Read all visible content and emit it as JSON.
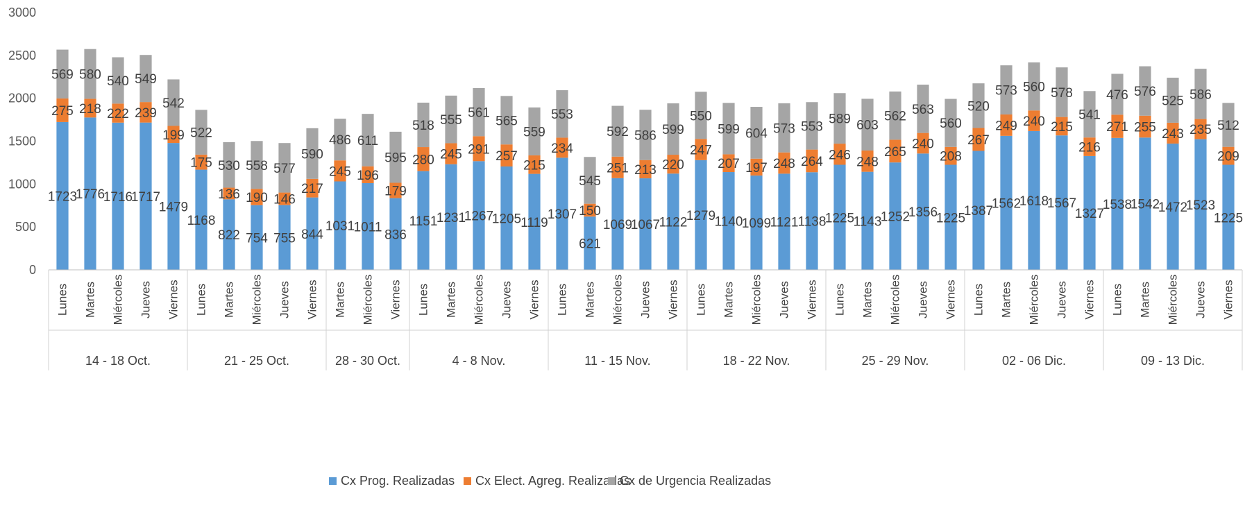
{
  "chart_data": {
    "type": "bar",
    "stacked": true,
    "title": "",
    "xlabel": "",
    "ylabel": "",
    "ylim": [
      0,
      3000
    ],
    "yticks": [
      0,
      500,
      1000,
      1500,
      2000,
      2500,
      3000
    ],
    "grid": false,
    "legend_position": "bottom",
    "groups": [
      {
        "label": "14 - 18 Oct.",
        "days": [
          "Lunes",
          "Martes",
          "Miércoles",
          "Jueves",
          "Viernes"
        ]
      },
      {
        "label": "21 - 25 Oct.",
        "days": [
          "Lunes",
          "Martes",
          "Miércoles",
          "Jueves",
          "Viernes"
        ]
      },
      {
        "label": "28 - 30 Oct.",
        "days": [
          "Martes",
          "Miércoles",
          "Viernes"
        ]
      },
      {
        "label": "4 - 8 Nov.",
        "days": [
          "Lunes",
          "Martes",
          "Miércoles",
          "Jueves",
          "Viernes"
        ]
      },
      {
        "label": "11 - 15 Nov.",
        "days": [
          "Lunes",
          "Martes",
          "Miércoles",
          "Jueves",
          "Viernes"
        ]
      },
      {
        "label": "18 - 22 Nov.",
        "days": [
          "Lunes",
          "Martes",
          "Miércoles",
          "Jueves",
          "Viernes"
        ]
      },
      {
        "label": "25 - 29 Nov.",
        "days": [
          "Lunes",
          "Martes",
          "Miércoles",
          "Jueves",
          "Viernes"
        ]
      },
      {
        "label": "02 - 06 Dic.",
        "days": [
          "Lunes",
          "Martes",
          "Miércoles",
          "Jueves",
          "Viernes"
        ]
      },
      {
        "label": "09 - 13 Dic.",
        "days": [
          "Lunes",
          "Martes",
          "Miércoles",
          "Jueves",
          "Viernes"
        ]
      }
    ],
    "series": [
      {
        "name": "Cx Prog. Realizadas",
        "color": "#5B9BD5",
        "values": [
          1723,
          1776,
          1716,
          1717,
          1479,
          1168,
          822,
          754,
          755,
          844,
          1031,
          1011,
          836,
          1151,
          1231,
          1267,
          1205,
          1119,
          1307,
          621,
          1069,
          1067,
          1122,
          1279,
          1140,
          1099,
          1121,
          1138,
          1225,
          1143,
          1252,
          1356,
          1225,
          1387,
          1562,
          1618,
          1567,
          1327,
          1538,
          1542,
          1472,
          1523,
          1225
        ]
      },
      {
        "name": "Cx Elect. Agreg. Realizadas",
        "color": "#ED7D31",
        "values": [
          275,
          218,
          222,
          239,
          199,
          175,
          136,
          190,
          146,
          217,
          245,
          196,
          179,
          280,
          245,
          291,
          257,
          215,
          234,
          150,
          251,
          213,
          220,
          247,
          207,
          197,
          248,
          264,
          246,
          248,
          265,
          240,
          208,
          267,
          249,
          240,
          215,
          216,
          271,
          255,
          243,
          235,
          209
        ]
      },
      {
        "name": "Cx de Urgencia Realizadas",
        "color": "#A5A5A5",
        "values": [
          569,
          580,
          540,
          549,
          542,
          522,
          530,
          558,
          577,
          590,
          486,
          611,
          595,
          518,
          555,
          561,
          565,
          559,
          553,
          545,
          592,
          586,
          599,
          550,
          599,
          604,
          573,
          553,
          589,
          603,
          562,
          563,
          560,
          520,
          573,
          560,
          578,
          541,
          476,
          576,
          525,
          586,
          512
        ]
      }
    ]
  }
}
